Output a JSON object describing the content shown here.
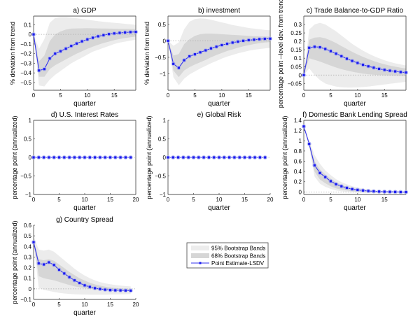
{
  "chart_data": [
    {
      "type": "line",
      "id": "a",
      "title": "a) GDP",
      "xlabel": "quarter",
      "ylabel": "% deviation from trend",
      "xlim": [
        0,
        19
      ],
      "ylim": [
        -0.58,
        0.19
      ],
      "xticks": [
        "0",
        "5",
        "10",
        "15"
      ],
      "xtick_values": [
        0,
        5,
        10,
        15
      ],
      "yticks": [
        "-0.5",
        "-0.4",
        "-0.3",
        "-0.2",
        "-0.1",
        "0",
        "0.1"
      ],
      "ytick_values": [
        -0.5,
        -0.4,
        -0.3,
        -0.2,
        -0.1,
        0,
        0.1
      ],
      "box": true,
      "x": [
        0,
        1,
        2,
        3,
        4,
        5,
        6,
        7,
        8,
        9,
        10,
        11,
        12,
        13,
        14,
        15,
        16,
        17,
        18,
        19
      ],
      "point_estimate": [
        0,
        -0.375,
        -0.36,
        -0.25,
        -0.2,
        -0.175,
        -0.148,
        -0.12,
        -0.095,
        -0.072,
        -0.052,
        -0.035,
        -0.02,
        -0.008,
        0.003,
        0.01,
        0.016,
        0.02,
        0.024,
        0.026
      ],
      "band95_upper": [
        0,
        -0.15,
        -0.05,
        0.12,
        0.17,
        0.18,
        0.18,
        0.175,
        0.168,
        0.16,
        0.152,
        0.145,
        0.138,
        0.131,
        0.125,
        0.12,
        0.115,
        0.11,
        0.105,
        0.1
      ],
      "band95_lower": [
        0,
        -0.53,
        -0.54,
        -0.47,
        -0.42,
        -0.38,
        -0.34,
        -0.3,
        -0.27,
        -0.24,
        -0.21,
        -0.18,
        -0.16,
        -0.14,
        -0.12,
        -0.1,
        -0.085,
        -0.075,
        -0.065,
        -0.055
      ],
      "band68_upper": [
        0,
        -0.28,
        -0.22,
        -0.07,
        0.0,
        0.03,
        0.05,
        0.06,
        0.062,
        0.063,
        0.064,
        0.063,
        0.062,
        0.061,
        0.06,
        0.059,
        0.058,
        0.057,
        0.056,
        0.055
      ],
      "band68_lower": [
        0,
        -0.44,
        -0.44,
        -0.36,
        -0.32,
        -0.29,
        -0.26,
        -0.23,
        -0.2,
        -0.175,
        -0.15,
        -0.128,
        -0.108,
        -0.09,
        -0.075,
        -0.06,
        -0.048,
        -0.038,
        -0.03,
        -0.022
      ]
    },
    {
      "type": "line",
      "id": "b",
      "title": "b) investment",
      "xlabel": "quarter",
      "ylabel": "% deviation from trend",
      "xlim": [
        0,
        19
      ],
      "ylim": [
        -1.5,
        0.75
      ],
      "xticks": [
        "0",
        "5",
        "10",
        "15"
      ],
      "xtick_values": [
        0,
        5,
        10,
        15
      ],
      "yticks": [
        "-1",
        "-0.5",
        "0",
        "0.5"
      ],
      "ytick_values": [
        -1,
        -0.5,
        0,
        0.5
      ],
      "box": true,
      "x": [
        0,
        1,
        2,
        3,
        4,
        5,
        6,
        7,
        8,
        9,
        10,
        11,
        12,
        13,
        14,
        15,
        16,
        17,
        18,
        19
      ],
      "point_estimate": [
        0,
        -0.7,
        -0.82,
        -0.59,
        -0.47,
        -0.41,
        -0.35,
        -0.29,
        -0.23,
        -0.18,
        -0.13,
        -0.09,
        -0.055,
        -0.025,
        0.0,
        0.02,
        0.035,
        0.05,
        0.06,
        0.065
      ],
      "band95_upper": [
        0,
        -0.15,
        -0.05,
        0.35,
        0.58,
        0.66,
        0.68,
        0.67,
        0.64,
        0.6,
        0.56,
        0.52,
        0.48,
        0.45,
        0.42,
        0.39,
        0.37,
        0.35,
        0.33,
        0.32
      ],
      "band95_lower": [
        0,
        -1.1,
        -1.35,
        -1.15,
        -1.02,
        -0.93,
        -0.84,
        -0.76,
        -0.68,
        -0.61,
        -0.54,
        -0.48,
        -0.43,
        -0.38,
        -0.34,
        -0.3,
        -0.27,
        -0.25,
        -0.23,
        -0.21
      ],
      "band68_upper": [
        0,
        -0.45,
        -0.4,
        -0.1,
        0.05,
        0.15,
        0.2,
        0.22,
        0.22,
        0.21,
        0.2,
        0.19,
        0.18,
        0.17,
        0.16,
        0.15,
        0.14,
        0.14,
        0.13,
        0.13
      ],
      "band68_lower": [
        0,
        -0.9,
        -1.1,
        -0.9,
        -0.8,
        -0.72,
        -0.65,
        -0.58,
        -0.5,
        -0.43,
        -0.37,
        -0.31,
        -0.26,
        -0.21,
        -0.17,
        -0.13,
        -0.1,
        -0.07,
        -0.05,
        -0.04
      ]
    },
    {
      "type": "line",
      "id": "c",
      "title": "c) Trade Balance-to-GDP Ratio",
      "xlabel": "quarter",
      "ylabel": "percentage point --level dev. from trend",
      "xlim": [
        0,
        19
      ],
      "ylim": [
        -0.09,
        0.35
      ],
      "xticks": [
        "0",
        "5",
        "10",
        "15"
      ],
      "xtick_values": [
        0,
        5,
        10,
        15
      ],
      "yticks": [
        "-0.05",
        "0",
        "0.05",
        "0.1",
        "0.15",
        "0.2",
        "0.25",
        "0.3"
      ],
      "ytick_values": [
        -0.05,
        0,
        0.05,
        0.1,
        0.15,
        0.2,
        0.25,
        0.3
      ],
      "box": true,
      "x": [
        0,
        1,
        2,
        3,
        4,
        5,
        6,
        7,
        8,
        9,
        10,
        11,
        12,
        13,
        14,
        15,
        16,
        17,
        18,
        19
      ],
      "point_estimate": [
        0,
        0.162,
        0.168,
        0.165,
        0.155,
        0.142,
        0.127,
        0.112,
        0.097,
        0.084,
        0.072,
        0.061,
        0.052,
        0.044,
        0.037,
        0.031,
        0.026,
        0.022,
        0.018,
        0.015
      ],
      "band95_upper": [
        0,
        0.27,
        0.3,
        0.31,
        0.3,
        0.28,
        0.26,
        0.235,
        0.21,
        0.185,
        0.165,
        0.145,
        0.128,
        0.113,
        0.1,
        0.088,
        0.078,
        0.07,
        0.063,
        0.057
      ],
      "band95_lower": [
        0,
        0.04,
        0.0,
        -0.03,
        -0.05,
        -0.06,
        -0.068,
        -0.072,
        -0.074,
        -0.074,
        -0.073,
        -0.071,
        -0.068,
        -0.064,
        -0.06,
        -0.056,
        -0.052,
        -0.048,
        -0.044,
        -0.04
      ],
      "band68_upper": [
        0,
        0.21,
        0.222,
        0.225,
        0.218,
        0.205,
        0.19,
        0.172,
        0.155,
        0.138,
        0.122,
        0.108,
        0.095,
        0.083,
        0.073,
        0.064,
        0.056,
        0.05,
        0.044,
        0.039
      ],
      "band68_lower": [
        0,
        0.1,
        0.09,
        0.08,
        0.068,
        0.056,
        0.045,
        0.035,
        0.027,
        0.02,
        0.014,
        0.009,
        0.005,
        0.002,
        0.0,
        -0.002,
        -0.003,
        -0.004,
        -0.005,
        -0.006
      ]
    },
    {
      "type": "line",
      "id": "d",
      "title": "d) U.S. Interest Rates",
      "xlabel": "quarter",
      "ylabel": "percentage point (annualized)",
      "xlim": [
        0,
        20
      ],
      "ylim": [
        -1,
        1
      ],
      "xticks": [
        "0",
        "5",
        "10",
        "15",
        "20"
      ],
      "xtick_values": [
        0,
        5,
        10,
        15,
        20
      ],
      "yticks": [
        "-1",
        "-0.5",
        "0",
        "0.5",
        "1"
      ],
      "ytick_values": [
        -1,
        -0.5,
        0,
        0.5,
        1
      ],
      "box": true,
      "x": [
        0,
        1,
        2,
        3,
        4,
        5,
        6,
        7,
        8,
        9,
        10,
        11,
        12,
        13,
        14,
        15,
        16,
        17,
        18,
        19
      ],
      "point_estimate": [
        0,
        0,
        0,
        0,
        0,
        0,
        0,
        0,
        0,
        0,
        0,
        0,
        0,
        0,
        0,
        0,
        0,
        0,
        0,
        0
      ]
    },
    {
      "type": "line",
      "id": "e",
      "title": "e) Global Risk",
      "xlabel": "quarter",
      "ylabel": "percentage point (annualized)",
      "xlim": [
        0,
        20
      ],
      "ylim": [
        -1,
        1
      ],
      "xticks": [
        "0",
        "5",
        "10",
        "15",
        "20"
      ],
      "xtick_values": [
        0,
        5,
        10,
        15,
        20
      ],
      "yticks": [
        "-1",
        "-0.5",
        "0",
        "0.5",
        "1"
      ],
      "ytick_values": [
        -1,
        -0.5,
        0,
        0.5,
        1
      ],
      "box": false,
      "x": [
        0,
        1,
        2,
        3,
        4,
        5,
        6,
        7,
        8,
        9,
        10,
        11,
        12,
        13,
        14,
        15,
        16,
        17,
        18,
        19
      ],
      "point_estimate": [
        0,
        0,
        0,
        0,
        0,
        0,
        0,
        0,
        0,
        0,
        0,
        0,
        0,
        0,
        0,
        0,
        0,
        0,
        0,
        0
      ]
    },
    {
      "type": "line",
      "id": "f",
      "title": "f) Domestic Bank Lending Spread",
      "xlabel": "quarter",
      "ylabel": "percentage point (annualized)",
      "xlim": [
        0,
        19
      ],
      "ylim": [
        -0.05,
        1.4
      ],
      "xticks": [
        "0",
        "5",
        "10",
        "15"
      ],
      "xtick_values": [
        0,
        5,
        10,
        15
      ],
      "yticks": [
        "0",
        "0.2",
        "0.4",
        "0.6",
        "0.8",
        "1",
        "1.2",
        "1.4"
      ],
      "ytick_values": [
        0,
        0.2,
        0.4,
        0.6,
        0.8,
        1,
        1.2,
        1.4
      ],
      "box": true,
      "x": [
        0,
        1,
        2,
        3,
        4,
        5,
        6,
        7,
        8,
        9,
        10,
        11,
        12,
        13,
        14,
        15,
        16,
        17,
        18,
        19
      ],
      "point_estimate": [
        1.28,
        0.94,
        0.52,
        0.37,
        0.29,
        0.21,
        0.15,
        0.11,
        0.08,
        0.055,
        0.04,
        0.028,
        0.018,
        0.012,
        0.007,
        0.004,
        0.002,
        0.0,
        -0.002,
        -0.003
      ],
      "band95_upper": [
        1.28,
        1.0,
        0.72,
        0.55,
        0.42,
        0.33,
        0.25,
        0.19,
        0.15,
        0.11,
        0.085,
        0.065,
        0.05,
        0.038,
        0.029,
        0.022,
        0.017,
        0.013,
        0.01,
        0.008
      ],
      "band95_lower": [
        1.28,
        0.88,
        0.3,
        0.16,
        0.1,
        0.06,
        0.03,
        0.012,
        0.0,
        -0.008,
        -0.012,
        -0.015,
        -0.017,
        -0.018,
        -0.018,
        -0.018,
        -0.017,
        -0.016,
        -0.015,
        -0.014
      ],
      "band68_upper": [
        1.28,
        0.97,
        0.6,
        0.44,
        0.34,
        0.26,
        0.19,
        0.14,
        0.1,
        0.075,
        0.055,
        0.04,
        0.029,
        0.021,
        0.015,
        0.011,
        0.008,
        0.006,
        0.004,
        0.003
      ],
      "band68_lower": [
        1.28,
        0.91,
        0.4,
        0.24,
        0.17,
        0.11,
        0.07,
        0.045,
        0.028,
        0.016,
        0.008,
        0.003,
        0.0,
        -0.003,
        -0.005,
        -0.006,
        -0.007,
        -0.007,
        -0.007,
        -0.007
      ]
    },
    {
      "type": "line",
      "id": "g",
      "title": "g) Country Spread",
      "xlabel": "quarter",
      "ylabel": "percentage point (annualized)",
      "xlim": [
        0,
        20
      ],
      "ylim": [
        -0.1,
        0.6
      ],
      "xticks": [
        "0",
        "5",
        "10",
        "15",
        "20"
      ],
      "xtick_values": [
        0,
        5,
        10,
        15,
        20
      ],
      "yticks": [
        "-0.1",
        "0",
        "0.1",
        "0.2",
        "0.3",
        "0.4",
        "0.5",
        "0.6"
      ],
      "ytick_values": [
        -0.1,
        0,
        0.1,
        0.2,
        0.3,
        0.4,
        0.5,
        0.6
      ],
      "box": false,
      "x": [
        0,
        1,
        2,
        3,
        4,
        5,
        6,
        7,
        8,
        9,
        10,
        11,
        12,
        13,
        14,
        15,
        16,
        17,
        18,
        19
      ],
      "point_estimate": [
        0.44,
        0.24,
        0.23,
        0.25,
        0.225,
        0.18,
        0.145,
        0.11,
        0.08,
        0.055,
        0.033,
        0.018,
        0.006,
        -0.002,
        -0.008,
        -0.012,
        -0.014,
        -0.015,
        -0.016,
        -0.017
      ],
      "band95_upper": [
        0.5,
        0.37,
        0.36,
        0.37,
        0.35,
        0.31,
        0.27,
        0.23,
        0.19,
        0.155,
        0.125,
        0.1,
        0.08,
        0.064,
        0.052,
        0.043,
        0.036,
        0.03,
        0.026,
        0.023
      ],
      "band95_lower": [
        0.44,
        0.01,
        -0.01,
        -0.02,
        -0.03,
        -0.038,
        -0.044,
        -0.048,
        -0.051,
        -0.053,
        -0.054,
        -0.055,
        -0.055,
        -0.055,
        -0.055,
        -0.054,
        -0.053,
        -0.052,
        -0.051,
        -0.05
      ],
      "band68_upper": [
        0.46,
        0.28,
        0.27,
        0.28,
        0.265,
        0.23,
        0.195,
        0.16,
        0.13,
        0.1,
        0.078,
        0.058,
        0.042,
        0.03,
        0.02,
        0.013,
        0.008,
        0.004,
        0.001,
        -0.001
      ],
      "band68_lower": [
        0.44,
        0.12,
        0.1,
        0.09,
        0.08,
        0.065,
        0.05,
        0.036,
        0.024,
        0.014,
        0.006,
        0.0,
        -0.005,
        -0.009,
        -0.012,
        -0.015,
        -0.017,
        -0.019,
        -0.021,
        -0.022
      ]
    }
  ],
  "legend": {
    "items": [
      {
        "label": "95% Bootstrap Bands",
        "kind": "band95"
      },
      {
        "label": "68% Bootstrap Bands",
        "kind": "band68"
      },
      {
        "label": "Point Estimate-LSDV",
        "kind": "line"
      }
    ],
    "placement": "bottom-center"
  },
  "colors": {
    "band95": "#ececec",
    "band68": "#d6d6d6",
    "line": "#3333ee",
    "marker": "#1a1aee",
    "marker_halo": "#aab0f0",
    "zero_line": "#b0b0b0",
    "axis": "#555555"
  }
}
